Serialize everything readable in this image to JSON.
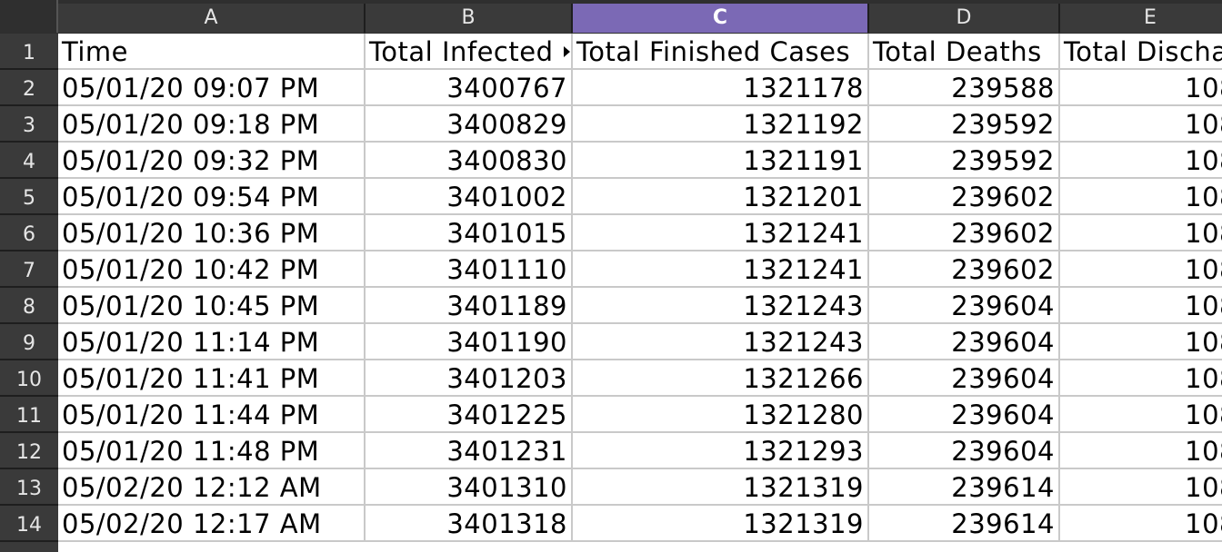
{
  "columns": [
    "A",
    "B",
    "C",
    "D",
    "E"
  ],
  "selected_column": "C",
  "rows": [
    {
      "row": "1",
      "cells": [
        "Time",
        "Total Infected",
        "Total Finished Cases",
        "Total Deaths",
        "Total Discha"
      ]
    },
    {
      "row": "2",
      "cells": [
        "05/01/20 09:07 PM",
        "3400767",
        "1321178",
        "239588",
        "108"
      ]
    },
    {
      "row": "3",
      "cells": [
        "05/01/20 09:18 PM",
        "3400829",
        "1321192",
        "239592",
        "108"
      ]
    },
    {
      "row": "4",
      "cells": [
        "05/01/20 09:32 PM",
        "3400830",
        "1321191",
        "239592",
        "108"
      ]
    },
    {
      "row": "5",
      "cells": [
        "05/01/20 09:54 PM",
        "3401002",
        "1321201",
        "239602",
        "108"
      ]
    },
    {
      "row": "6",
      "cells": [
        "05/01/20 10:36 PM",
        "3401015",
        "1321241",
        "239602",
        "108"
      ]
    },
    {
      "row": "7",
      "cells": [
        "05/01/20 10:42 PM",
        "3401110",
        "1321241",
        "239602",
        "108"
      ]
    },
    {
      "row": "8",
      "cells": [
        "05/01/20 10:45 PM",
        "3401189",
        "1321243",
        "239604",
        "108"
      ]
    },
    {
      "row": "9",
      "cells": [
        "05/01/20 11:14 PM",
        "3401190",
        "1321243",
        "239604",
        "108"
      ]
    },
    {
      "row": "10",
      "cells": [
        "05/01/20 11:41 PM",
        "3401203",
        "1321266",
        "239604",
        "108"
      ]
    },
    {
      "row": "11",
      "cells": [
        "05/01/20 11:44 PM",
        "3401225",
        "1321280",
        "239604",
        "108"
      ]
    },
    {
      "row": "12",
      "cells": [
        "05/01/20 11:48 PM",
        "3401231",
        "1321293",
        "239604",
        "108"
      ]
    },
    {
      "row": "13",
      "cells": [
        "05/02/20 12:12 AM",
        "3401310",
        "1321319",
        "239614",
        "108"
      ]
    },
    {
      "row": "14",
      "cells": [
        "05/02/20 12:17 AM",
        "3401318",
        "1321319",
        "239614",
        "108"
      ]
    }
  ],
  "colors": {
    "header_bg": "#3a3a3a",
    "selected_header_bg": "#7b69b5",
    "grid_line": "#c9c9c9"
  }
}
